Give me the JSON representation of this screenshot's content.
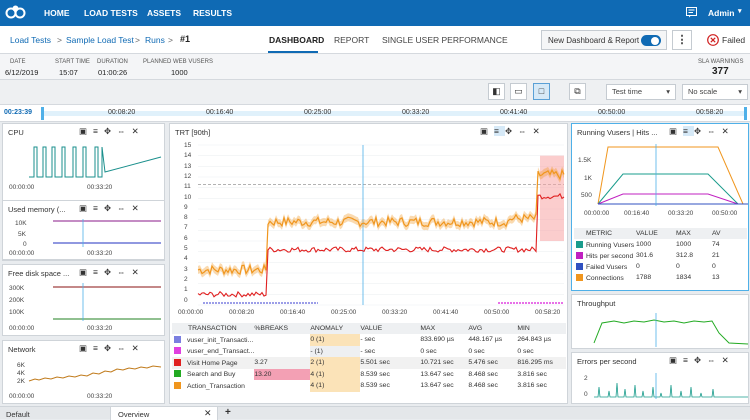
{
  "nav": {
    "items": [
      "HOME",
      "LOAD TESTS",
      "ASSETS",
      "RESULTS"
    ],
    "user": "Admin"
  },
  "breadcrumb": {
    "items": [
      "Load Tests",
      "Sample Load Test",
      "Runs"
    ],
    "current": "#1"
  },
  "tabs": {
    "items": [
      "DASHBOARD",
      "REPORT",
      "SINGLE USER PERFORMANCE"
    ],
    "active": "DASHBOARD"
  },
  "toggle": {
    "label": "New Dashboard & Report"
  },
  "status": {
    "label": "Failed"
  },
  "info": {
    "date_label": "DATE",
    "date": "6/12/2019",
    "start_label": "START TIME",
    "start": "15:07",
    "duration_label": "DURATION",
    "duration": "01:00:26",
    "vusers_label": "PLANNED WEB VUSERS",
    "vusers": "1000",
    "sla_label": "SLA WARNINGS",
    "sla": "377"
  },
  "toolbar": {
    "time_select": "Test time",
    "scale_select": "No scale"
  },
  "timeline": {
    "current": "00:23:39",
    "ticks": [
      "00:08:20",
      "00:16:40",
      "00:25:00",
      "00:33:20",
      "00:41:40",
      "00:50:00",
      "00:58:20"
    ]
  },
  "small_panels": [
    {
      "title": "CPU",
      "ticks": [
        "00:00:00",
        "00:33:20"
      ],
      "y": []
    },
    {
      "title": "Used memory (...",
      "ticks": [
        "00:00:00",
        "00:33:20"
      ],
      "y": [
        "10K",
        "5K",
        "0"
      ]
    },
    {
      "title": "Free disk space ...",
      "ticks": [
        "00:00:00",
        "00:33:20"
      ],
      "y": [
        "300K",
        "200K",
        "100K"
      ]
    },
    {
      "title": "Network",
      "ticks": [
        "00:00:00",
        "00:33:20"
      ],
      "y": [
        "6K",
        "4K",
        "2K"
      ]
    }
  ],
  "trt": {
    "title": "TRT [90th]",
    "y": [
      "15",
      "14",
      "13",
      "12",
      "11",
      "10",
      "9",
      "8",
      "7",
      "6",
      "5",
      "4",
      "3",
      "2",
      "1",
      "0"
    ],
    "ticks": [
      "00:00:00",
      "00:08:20",
      "00:16:40",
      "00:25:00",
      "00:33:20",
      "00:41:40",
      "00:50:00",
      "00:58:20"
    ]
  },
  "transactions": {
    "headers": [
      "TRANSACTION",
      "%BREAKS",
      "ANOMALY",
      "VALUE",
      "MAX",
      "AVG",
      "MIN"
    ],
    "rows": [
      {
        "color": "#7b7fe0",
        "name": "vuser_init_Transacti...",
        "breaks": "",
        "anomaly": "0 (1)",
        "value": "- sec",
        "max": "833.690 µs",
        "avg": "448.167 µs",
        "min": "264.843 µs"
      },
      {
        "color": "#e040e0",
        "name": "vuser_end_Transact...",
        "breaks": "",
        "anomaly": "- (1)",
        "value": "- sec",
        "max": "0 sec",
        "avg": "0 sec",
        "min": "0 sec"
      },
      {
        "color": "#e02020",
        "name": "Visit Home Page",
        "breaks": "3.27",
        "anomaly": "2 (1)",
        "value": "5.501 sec",
        "max": "10.721 sec",
        "avg": "5.476 sec",
        "min": "816.295 ms"
      },
      {
        "color": "#22aa22",
        "name": "Search and Buy",
        "breaks": "13.20",
        "anomaly": "4 (1)",
        "value": "8.539 sec",
        "max": "13.647 sec",
        "avg": "8.468 sec",
        "min": "3.816 sec"
      },
      {
        "color": "#f0961e",
        "name": "Action_Transaction",
        "breaks": "",
        "anomaly": "4 (1)",
        "value": "8.539 sec",
        "max": "13.647 sec",
        "avg": "8.468 sec",
        "min": "3.816 sec"
      }
    ]
  },
  "vusers_panel": {
    "title": "Running Vusers | Hits ...",
    "y": [
      "1.5K",
      "1K",
      "500"
    ],
    "ticks": [
      "00:00:00",
      "00:16:40",
      "00:33:20",
      "00:50:00"
    ],
    "headers": [
      "METRIC",
      "VALUE",
      "MAX",
      "AV"
    ],
    "rows": [
      {
        "color": "#1a9c8c",
        "name": "Running Vusers",
        "value": "1000",
        "max": "1000",
        "av": "74"
      },
      {
        "color": "#c020c0",
        "name": "Hits per second",
        "value": "301.6",
        "max": "312.8",
        "av": "21"
      },
      {
        "color": "#3050c0",
        "name": "Failed Vusers",
        "value": "0",
        "max": "0",
        "av": "0"
      },
      {
        "color": "#f0961e",
        "name": "Connections",
        "value": "1788",
        "max": "1834",
        "av": "13"
      }
    ]
  },
  "throughput": {
    "title": "Throughput"
  },
  "errors": {
    "title": "Errors per second",
    "y": [
      "2",
      "0"
    ]
  },
  "bottom_tabs": [
    "Default",
    "Overview"
  ]
}
